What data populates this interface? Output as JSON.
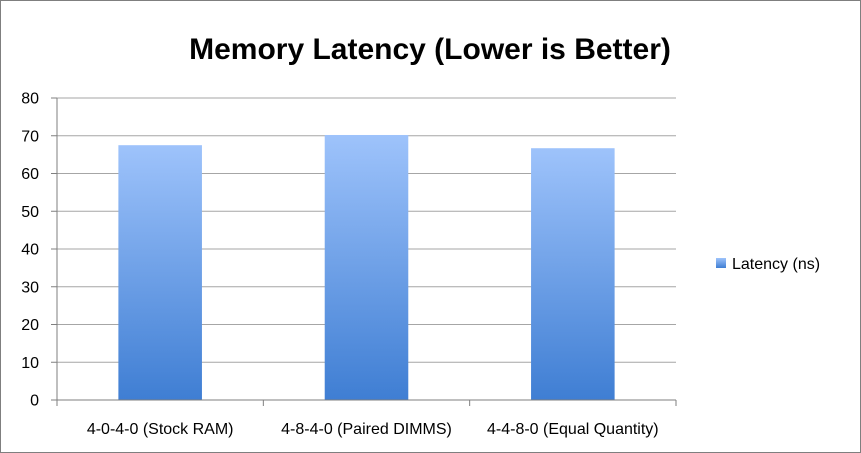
{
  "chart_data": {
    "type": "bar",
    "title": "Memory Latency (Lower is Better)",
    "categories": [
      "4-0-4-0 (Stock RAM)",
      "4-8-4-0 (Paired DIMMS)",
      "4-4-8-0 (Equal Quantity)"
    ],
    "series": [
      {
        "name": "Latency (ns)",
        "values": [
          67.5,
          70.2,
          66.7
        ]
      }
    ],
    "ylim": [
      0,
      80
    ],
    "yticks": [
      0,
      10,
      20,
      30,
      40,
      50,
      60,
      70,
      80
    ],
    "grid": true,
    "legend": "right",
    "colors": {
      "bar_top": "#9ec3fb",
      "bar_bottom": "#3f7ed3",
      "grid": "#a6a6a6",
      "axis": "#7f7f7f"
    }
  }
}
